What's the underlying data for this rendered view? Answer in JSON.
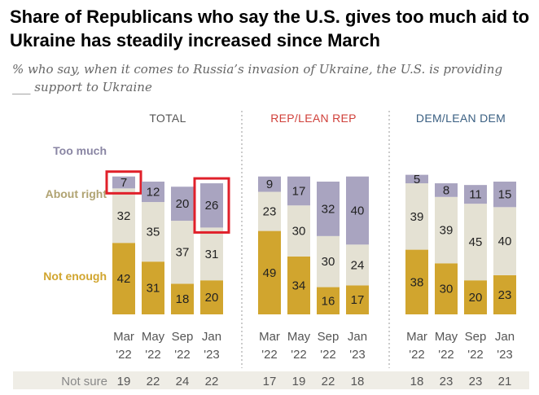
{
  "title": "Share of Republicans who say the U.S. gives too much aid to Ukraine has steadily increased since March",
  "subtitle": "% who say, when it comes to Russia’s invasion of Ukraine, the U.S. is providing ___ support to Ukraine",
  "chart_data": {
    "type": "bar",
    "stacked": true,
    "ylim": [
      0,
      100
    ],
    "row_labels": [
      "Too much",
      "About right",
      "Not enough"
    ],
    "not_sure_label": "Not sure",
    "colors": {
      "too_much": "#a9a4c0",
      "about_right": "#e4e1d3",
      "not_enough": "#d1a52e",
      "highlight": "#e0202a",
      "group_title_total": "#555555",
      "group_title_rep": "#d0403a",
      "group_title_dem": "#3a5f82",
      "row_label": "#b0a372",
      "not_sure_bg": "#efede6"
    },
    "groups": [
      {
        "title": "TOTAL",
        "bars": [
          {
            "month": "Mar",
            "year": "'22",
            "too_much": 7,
            "about_right": 32,
            "not_enough": 42,
            "not_sure": 19,
            "highlight": true
          },
          {
            "month": "May",
            "year": "'22",
            "too_much": 12,
            "about_right": 35,
            "not_enough": 31,
            "not_sure": 22
          },
          {
            "month": "Sep",
            "year": "'22",
            "too_much": 20,
            "about_right": 37,
            "not_enough": 18,
            "not_sure": 24
          },
          {
            "month": "Jan",
            "year": "'23",
            "too_much": 26,
            "about_right": 31,
            "not_enough": 20,
            "not_sure": 22,
            "highlight": true
          }
        ]
      },
      {
        "title": "REP/LEAN REP",
        "bars": [
          {
            "month": "Mar",
            "year": "'22",
            "too_much": 9,
            "about_right": 23,
            "not_enough": 49,
            "not_sure": 17
          },
          {
            "month": "May",
            "year": "'22",
            "too_much": 17,
            "about_right": 30,
            "not_enough": 34,
            "not_sure": 19
          },
          {
            "month": "Sep",
            "year": "'22",
            "too_much": 32,
            "about_right": 30,
            "not_enough": 16,
            "not_sure": 22
          },
          {
            "month": "Jan",
            "year": "'23",
            "too_much": 40,
            "about_right": 24,
            "not_enough": 17,
            "not_sure": 18
          }
        ]
      },
      {
        "title": "DEM/LEAN DEM",
        "bars": [
          {
            "month": "Mar",
            "year": "'22",
            "too_much": 5,
            "about_right": 39,
            "not_enough": 38,
            "not_sure": 18
          },
          {
            "month": "May",
            "year": "'22",
            "too_much": 8,
            "about_right": 39,
            "not_enough": 30,
            "not_sure": 23
          },
          {
            "month": "Sep",
            "year": "'22",
            "too_much": 11,
            "about_right": 45,
            "not_enough": 20,
            "not_sure": 23
          },
          {
            "month": "Jan",
            "year": "'23",
            "too_much": 15,
            "about_right": 40,
            "not_enough": 23,
            "not_sure": 21
          }
        ]
      }
    ]
  }
}
